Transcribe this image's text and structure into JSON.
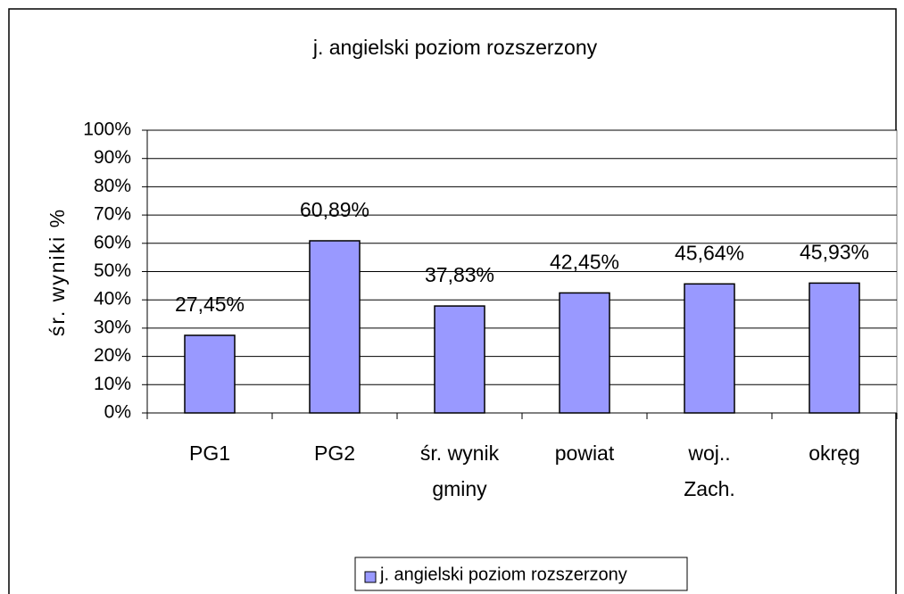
{
  "chart_data": {
    "type": "bar",
    "title": "j. angielski poziom rozszerzony",
    "y_label": "śr. wyniki %",
    "categories": [
      "PG1",
      "PG2",
      "śr. wynik\ngminy",
      "powiat",
      "woj..\nZach.",
      "okręg"
    ],
    "series": [
      {
        "name": "j. angielski poziom rozszerzony",
        "color": "#9999ff",
        "values": [
          27.45,
          60.89,
          37.83,
          42.45,
          45.64,
          45.93
        ],
        "value_labels": [
          "27,45%",
          "60,89%",
          "37,83%",
          "42,45%",
          "45,64%",
          "45,93%"
        ]
      }
    ],
    "ylim": [
      0,
      100
    ],
    "yticks": [
      {
        "value": 0,
        "label": "0%"
      },
      {
        "value": 10,
        "label": "10%"
      },
      {
        "value": 20,
        "label": "20%"
      },
      {
        "value": 30,
        "label": "30%"
      },
      {
        "value": 40,
        "label": "40%"
      },
      {
        "value": 50,
        "label": "50%"
      },
      {
        "value": 60,
        "label": "60%"
      },
      {
        "value": 70,
        "label": "70%"
      },
      {
        "value": 80,
        "label": "80%"
      },
      {
        "value": 90,
        "label": "90%"
      },
      {
        "value": 100,
        "label": "100%"
      }
    ],
    "grid": true,
    "legend": "bottom"
  }
}
